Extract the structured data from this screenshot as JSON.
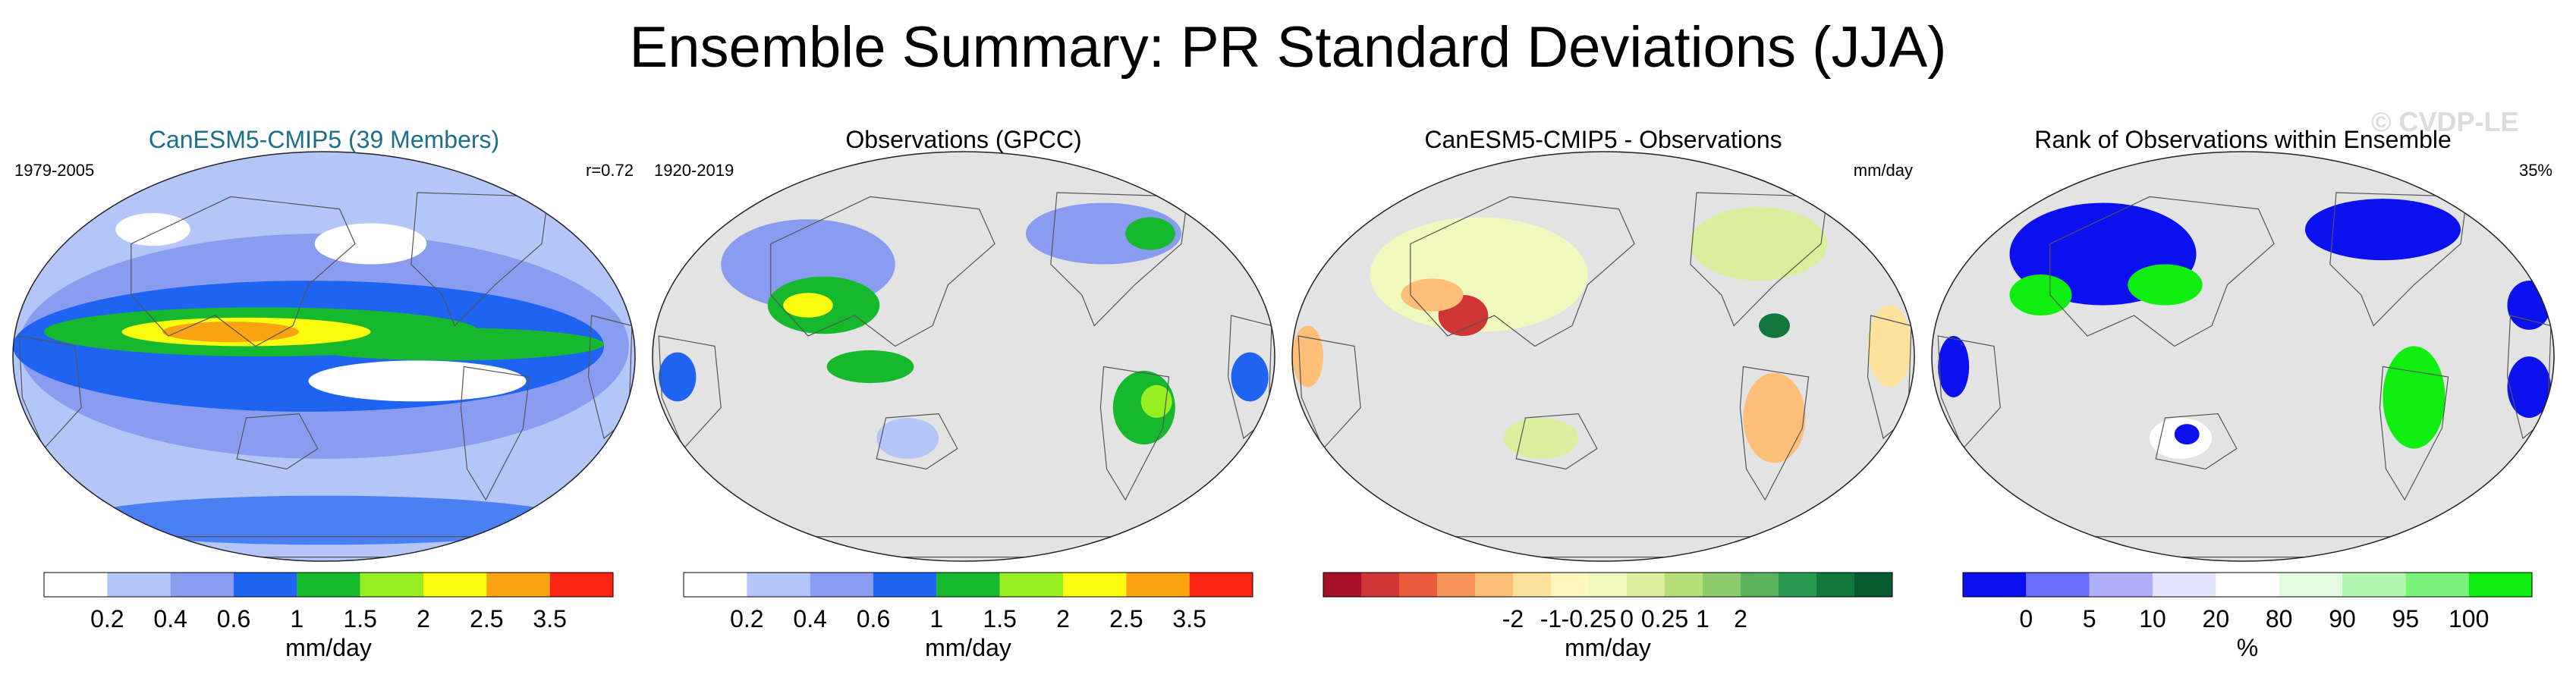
{
  "title": "Ensemble Summary: PR Standard Deviations (JJA)",
  "watermark": "© CVDP-LE",
  "panels": [
    {
      "title": "CanESM5-CMIP5 (39 Members)",
      "title_color": "#1b6f8a",
      "left_label": "1979-2005",
      "right_label": "r=0.72",
      "colorbar": {
        "colors": [
          "#ffffff",
          "#b4c6f8",
          "#8a9cf0",
          "#1e63f2",
          "#16b82e",
          "#97ef22",
          "#fbfc10",
          "#fca311",
          "#fb2414"
        ],
        "ticks": [
          "0.2",
          "0.4",
          "0.6",
          "1",
          "1.5",
          "2",
          "2.5",
          "3.5"
        ],
        "label": "mm/day"
      }
    },
    {
      "title": "Observations (GPCC)",
      "title_color": "#000000",
      "left_label": "1920-2019",
      "right_label": "",
      "colorbar": {
        "colors": [
          "#ffffff",
          "#b4c6f8",
          "#8a9cf0",
          "#1e63f2",
          "#16b82e",
          "#97ef22",
          "#fbfc10",
          "#fca311",
          "#fb2414"
        ],
        "ticks": [
          "0.2",
          "0.4",
          "0.6",
          "1",
          "1.5",
          "2",
          "2.5",
          "3.5"
        ],
        "label": "mm/day"
      }
    },
    {
      "title": "CanESM5-CMIP5 - Observations",
      "title_color": "#000000",
      "left_label": "",
      "right_label": "mm/day",
      "colorbar": {
        "colors": [
          "#a6102a",
          "#cf3534",
          "#ea5b3c",
          "#f7945a",
          "#fdbe78",
          "#fce29a",
          "#fdf7bd",
          "#f0f8be",
          "#d9ef9e",
          "#b6de7a",
          "#8ccc6a",
          "#5bb35e",
          "#2a9a50",
          "#12773c",
          "#055c30"
        ],
        "ticks": [
          "-2",
          "-1",
          "-0.25",
          "0",
          "0.25",
          "1",
          "2"
        ],
        "label": "mm/day"
      }
    },
    {
      "title": "Rank of Observations within Ensemble",
      "title_color": "#000000",
      "left_label": "",
      "right_label": "35%",
      "colorbar": {
        "colors": [
          "#0a10ee",
          "#6c6cfa",
          "#b0b0f8",
          "#e3e3fc",
          "#ffffff",
          "#e3fbe3",
          "#b4f7b4",
          "#79f479",
          "#10ee10"
        ],
        "ticks": [
          "0",
          "5",
          "10",
          "20",
          "80",
          "90",
          "95",
          "100"
        ],
        "label": "%"
      }
    }
  ],
  "chart_data": [
    {
      "type": "heatmap",
      "title": "CanESM5-CMIP5 (39 Members)",
      "period": "1979-2005",
      "pattern_correlation": "r=0.72",
      "legend_levels": [
        "0.2",
        "0.4",
        "0.6",
        "1",
        "1.5",
        "2",
        "2.5",
        "3.5"
      ],
      "units": "mm/day"
    },
    {
      "type": "heatmap",
      "title": "Observations (GPCC)",
      "period": "1920-2019",
      "legend_levels": [
        "0.2",
        "0.4",
        "0.6",
        "1",
        "1.5",
        "2",
        "2.5",
        "3.5"
      ],
      "units": "mm/day"
    },
    {
      "type": "heatmap",
      "title": "CanESM5-CMIP5 - Observations",
      "legend_levels": [
        "-2",
        "-1",
        "-0.25",
        "0",
        "0.25",
        "1",
        "2"
      ],
      "units": "mm/day"
    },
    {
      "type": "heatmap",
      "title": "Rank of Observations within Ensemble",
      "summary": "35%",
      "legend_levels": [
        "0",
        "5",
        "10",
        "20",
        "80",
        "90",
        "95",
        "100"
      ],
      "units": "%"
    }
  ]
}
